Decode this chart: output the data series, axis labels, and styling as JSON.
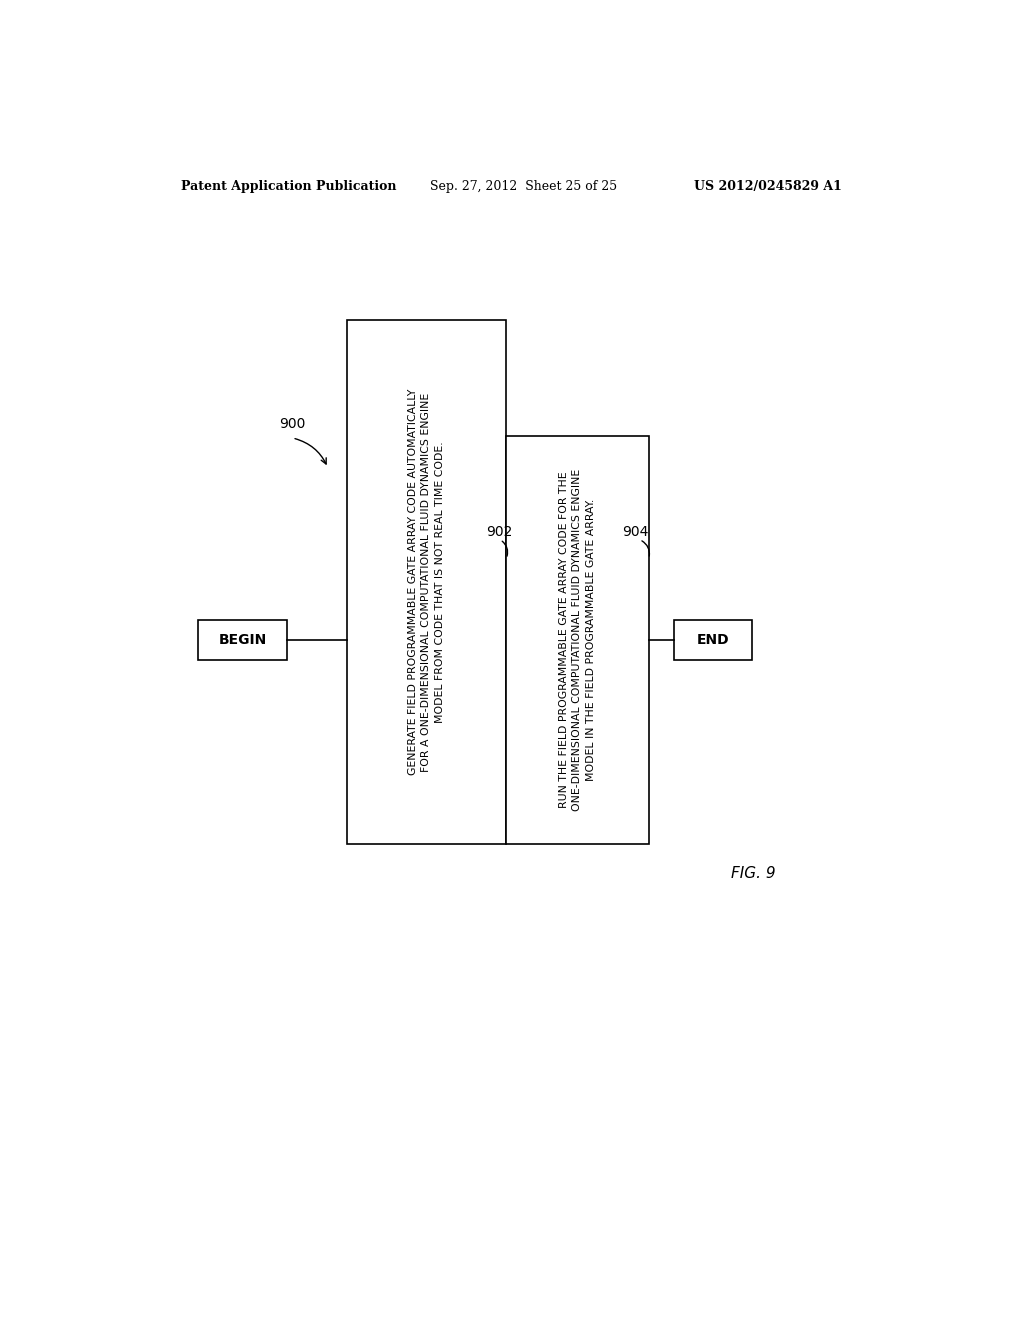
{
  "background_color": "#ffffff",
  "header_left": "Patent Application Publication",
  "header_center": "Sep. 27, 2012  Sheet 25 of 25",
  "header_right": "US 2012/0245829 A1",
  "header_fontsize": 9,
  "fig_label": "FIG. 9",
  "diagram_label": "900",
  "label_902": "902",
  "label_904": "904",
  "begin_text": "BEGIN",
  "end_text": "END",
  "box1_text": "GENERATE FIELD PROGRAMMABLE GATE ARRAY CODE AUTOMATICALLY\nFOR A ONE-DIMENSIONAL COMPUTATIONAL FLUID DYNAMICS ENGINE\nMODEL FROM CODE THAT IS NOT REAL TIME CODE.",
  "box2_text": "RUN THE FIELD PROGRAMMABLE GATE ARRAY CODE FOR THE\nONE-DIMENSIONAL COMPUTATIONAL FLUID DYNAMICS ENGINE\nMODEL IN THE FIELD PROGRAMMABLE GATE ARRAY.",
  "text_color": "#000000",
  "box_edge_color": "#000000",
  "box_fill_color": "#ffffff",
  "line_color": "#000000"
}
